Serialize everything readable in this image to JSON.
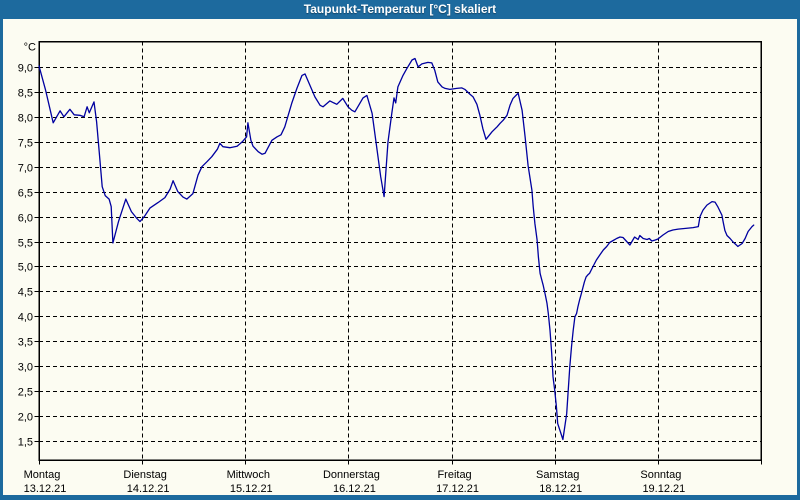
{
  "window": {
    "title": "Taupunkt-Temperatur [°C] skaliert"
  },
  "colors": {
    "frame": "#1d6a9e",
    "title_text": "#ffffff",
    "background": "#fcfcf2",
    "grid": "#000000",
    "axis": "#000000",
    "line": "#0000a0"
  },
  "chart_data": {
    "type": "line",
    "title": "Taupunkt-Temperatur [°C] skaliert",
    "ylabel": "°C",
    "xlabel": "",
    "grid": "dashed",
    "legend_position": "none",
    "ylim": [
      1.12,
      9.51
    ],
    "y_ticks": [
      1.5,
      2.0,
      2.5,
      3.0,
      3.5,
      4.0,
      4.5,
      5.0,
      5.5,
      6.0,
      6.5,
      7.0,
      7.5,
      8.0,
      8.5,
      9.0
    ],
    "y_tick_labels": [
      "1,5",
      "2,0",
      "2,5",
      "3,0",
      "3,5",
      "4,0",
      "4,5",
      "5,0",
      "5,5",
      "6,0",
      "6,5",
      "7,0",
      "7,5",
      "8,0",
      "8,5",
      "9,0"
    ],
    "x_range_hours": [
      0,
      168
    ],
    "x_day_ticks": [
      {
        "hour": 0,
        "name": "Montag",
        "date": "13.12.21"
      },
      {
        "hour": 24,
        "name": "Dienstag",
        "date": "14.12.21"
      },
      {
        "hour": 48,
        "name": "Mittwoch",
        "date": "15.12.21"
      },
      {
        "hour": 72,
        "name": "Donnerstag",
        "date": "16.12.21"
      },
      {
        "hour": 96,
        "name": "Freitag",
        "date": "17.12.21"
      },
      {
        "hour": 120,
        "name": "Samstag",
        "date": "18.12.21"
      },
      {
        "hour": 144,
        "name": "Sonntag",
        "date": "19.12.21"
      }
    ],
    "series": [
      {
        "name": "Taupunkt [°C]",
        "color": "#0000a0",
        "points_hour_degC": [
          [
            0,
            9.02
          ],
          [
            1.5,
            8.55
          ],
          [
            3.3,
            7.88
          ],
          [
            4.9,
            8.12
          ],
          [
            5.8,
            8.0
          ],
          [
            7.2,
            8.15
          ],
          [
            8.2,
            8.04
          ],
          [
            9.5,
            8.03
          ],
          [
            10.5,
            8.0
          ],
          [
            11.2,
            8.2
          ],
          [
            11.7,
            8.08
          ],
          [
            12.8,
            8.3
          ],
          [
            13.4,
            7.9
          ],
          [
            14.0,
            7.3
          ],
          [
            14.7,
            6.6
          ],
          [
            15.4,
            6.42
          ],
          [
            16.3,
            6.35
          ],
          [
            16.8,
            6.2
          ],
          [
            17.2,
            5.47
          ],
          [
            18.5,
            5.9
          ],
          [
            20.2,
            6.35
          ],
          [
            21.5,
            6.1
          ],
          [
            22.8,
            5.96
          ],
          [
            23.5,
            5.9
          ],
          [
            24.5,
            6.0
          ],
          [
            25.8,
            6.17
          ],
          [
            27.7,
            6.28
          ],
          [
            29.3,
            6.38
          ],
          [
            30.5,
            6.55
          ],
          [
            31.2,
            6.72
          ],
          [
            32.3,
            6.5
          ],
          [
            33.5,
            6.39
          ],
          [
            34.4,
            6.35
          ],
          [
            35.8,
            6.46
          ],
          [
            37.0,
            6.83
          ],
          [
            37.9,
            7.0
          ],
          [
            39.1,
            7.1
          ],
          [
            40.2,
            7.2
          ],
          [
            41.5,
            7.35
          ],
          [
            42.1,
            7.47
          ],
          [
            42.8,
            7.4
          ],
          [
            44.4,
            7.38
          ],
          [
            46.1,
            7.41
          ],
          [
            47.3,
            7.5
          ],
          [
            48.3,
            7.6
          ],
          [
            48.6,
            7.88
          ],
          [
            49.3,
            7.53
          ],
          [
            49.8,
            7.41
          ],
          [
            51.0,
            7.3
          ],
          [
            51.9,
            7.25
          ],
          [
            52.6,
            7.27
          ],
          [
            54.2,
            7.53
          ],
          [
            55.4,
            7.6
          ],
          [
            56.3,
            7.64
          ],
          [
            57.2,
            7.8
          ],
          [
            58.8,
            8.27
          ],
          [
            60.0,
            8.57
          ],
          [
            61.2,
            8.83
          ],
          [
            61.9,
            8.86
          ],
          [
            63.5,
            8.54
          ],
          [
            64.2,
            8.4
          ],
          [
            65.4,
            8.23
          ],
          [
            66.1,
            8.2
          ],
          [
            67.7,
            8.32
          ],
          [
            68.6,
            8.28
          ],
          [
            69.3,
            8.25
          ],
          [
            70.7,
            8.37
          ],
          [
            71.9,
            8.2
          ],
          [
            72.8,
            8.13
          ],
          [
            73.5,
            8.1
          ],
          [
            75.4,
            8.38
          ],
          [
            76.3,
            8.43
          ],
          [
            77.5,
            8.07
          ],
          [
            79.5,
            6.8
          ],
          [
            80.3,
            6.4
          ],
          [
            81.2,
            7.5
          ],
          [
            82.1,
            8.07
          ],
          [
            82.6,
            8.38
          ],
          [
            83.0,
            8.28
          ],
          [
            83.5,
            8.6
          ],
          [
            84.7,
            8.83
          ],
          [
            85.6,
            8.97
          ],
          [
            86.8,
            9.14
          ],
          [
            87.5,
            9.17
          ],
          [
            88.2,
            9.0
          ],
          [
            89.1,
            9.06
          ],
          [
            90.5,
            9.09
          ],
          [
            91.4,
            9.08
          ],
          [
            92.1,
            8.93
          ],
          [
            92.8,
            8.7
          ],
          [
            93.8,
            8.6
          ],
          [
            94.5,
            8.57
          ],
          [
            95.6,
            8.55
          ],
          [
            97.2,
            8.57
          ],
          [
            98.4,
            8.58
          ],
          [
            99.1,
            8.55
          ],
          [
            100.3,
            8.45
          ],
          [
            101.0,
            8.4
          ],
          [
            101.9,
            8.25
          ],
          [
            102.6,
            8.03
          ],
          [
            103.3,
            7.76
          ],
          [
            104.0,
            7.55
          ],
          [
            105.4,
            7.7
          ],
          [
            106.6,
            7.8
          ],
          [
            107.3,
            7.87
          ],
          [
            108.0,
            7.93
          ],
          [
            108.9,
            8.03
          ],
          [
            109.6,
            8.23
          ],
          [
            110.3,
            8.37
          ],
          [
            111.2,
            8.45
          ],
          [
            111.5,
            8.47
          ],
          [
            112.4,
            8.13
          ],
          [
            113.1,
            7.6
          ],
          [
            113.8,
            7.02
          ],
          [
            114.7,
            6.53
          ],
          [
            115.0,
            6.2
          ],
          [
            115.4,
            5.86
          ],
          [
            115.9,
            5.53
          ],
          [
            116.2,
            5.19
          ],
          [
            116.6,
            4.86
          ],
          [
            117.1,
            4.69
          ],
          [
            117.3,
            4.63
          ],
          [
            117.8,
            4.43
          ],
          [
            118.2,
            4.26
          ],
          [
            118.5,
            4.06
          ],
          [
            118.9,
            3.72
          ],
          [
            119.3,
            3.26
          ],
          [
            119.6,
            2.79
          ],
          [
            120.0,
            2.52
          ],
          [
            120.4,
            2.19
          ],
          [
            120.7,
            1.85
          ],
          [
            121.9,
            1.53
          ],
          [
            122.8,
            2.05
          ],
          [
            123.1,
            2.45
          ],
          [
            123.5,
            2.99
          ],
          [
            123.9,
            3.39
          ],
          [
            124.3,
            3.72
          ],
          [
            124.7,
            3.99
          ],
          [
            125.1,
            4.06
          ],
          [
            125.4,
            4.19
          ],
          [
            125.8,
            4.33
          ],
          [
            126.2,
            4.46
          ],
          [
            126.9,
            4.69
          ],
          [
            127.3,
            4.79
          ],
          [
            127.7,
            4.83
          ],
          [
            128.1,
            4.86
          ],
          [
            128.9,
            5.0
          ],
          [
            129.7,
            5.13
          ],
          [
            130.5,
            5.23
          ],
          [
            131.3,
            5.33
          ],
          [
            132.1,
            5.4
          ],
          [
            132.8,
            5.48
          ],
          [
            133.6,
            5.52
          ],
          [
            134.4,
            5.56
          ],
          [
            135.2,
            5.59
          ],
          [
            135.9,
            5.58
          ],
          [
            137.5,
            5.43
          ],
          [
            138.6,
            5.59
          ],
          [
            139.4,
            5.54
          ],
          [
            139.8,
            5.62
          ],
          [
            140.6,
            5.56
          ],
          [
            141.5,
            5.54
          ],
          [
            142.0,
            5.56
          ],
          [
            142.6,
            5.51
          ],
          [
            143.4,
            5.53
          ],
          [
            144.0,
            5.55
          ],
          [
            145.2,
            5.63
          ],
          [
            146.4,
            5.7
          ],
          [
            147.5,
            5.73
          ],
          [
            148.7,
            5.75
          ],
          [
            149.9,
            5.76
          ],
          [
            152.2,
            5.78
          ],
          [
            153.4,
            5.8
          ],
          [
            153.8,
            6.0
          ],
          [
            154.5,
            6.13
          ],
          [
            155.4,
            6.23
          ],
          [
            156.6,
            6.3
          ],
          [
            157.3,
            6.29
          ],
          [
            158.0,
            6.19
          ],
          [
            158.9,
            6.03
          ],
          [
            159.2,
            5.89
          ],
          [
            159.6,
            5.72
          ],
          [
            160.1,
            5.62
          ],
          [
            160.8,
            5.56
          ],
          [
            161.5,
            5.49
          ],
          [
            162.4,
            5.42
          ],
          [
            162.6,
            5.4
          ],
          [
            163.6,
            5.46
          ],
          [
            164.3,
            5.56
          ],
          [
            165.0,
            5.7
          ],
          [
            165.9,
            5.8
          ],
          [
            166.3,
            5.83
          ]
        ]
      }
    ]
  }
}
